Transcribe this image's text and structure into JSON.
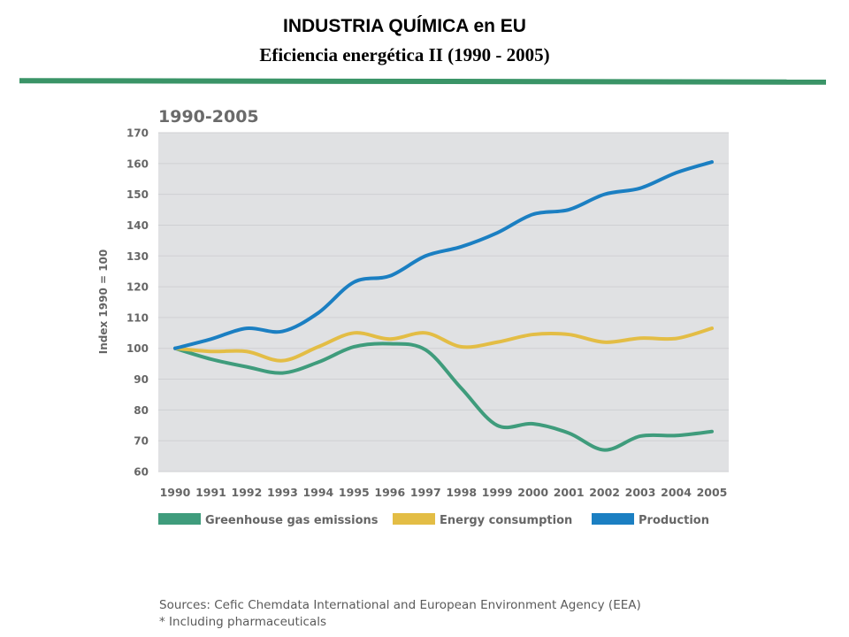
{
  "page": {
    "title": "INDUSTRIA QUÍMICA en EU",
    "subtitle": "Eficiencia energética  II (1990 - 2005)",
    "rule_color": "#3a9467"
  },
  "chart_data": {
    "type": "line",
    "title": "1990-2005",
    "xlabel": "",
    "ylabel": "Index 1990 = 100",
    "ylim": [
      60,
      170
    ],
    "yticks": [
      60,
      70,
      80,
      90,
      100,
      110,
      120,
      130,
      140,
      150,
      160,
      170
    ],
    "categories": [
      "1990",
      "1991",
      "1992",
      "1993",
      "1994",
      "1995",
      "1996",
      "1997",
      "1998",
      "1999",
      "2000",
      "2001",
      "2002",
      "2003",
      "2004",
      "2005"
    ],
    "grid": true,
    "legend_position": "bottom",
    "background": "#e0e1e3",
    "series": [
      {
        "name": "Greenhouse gas emissions",
        "color": "#3f9c7c",
        "values": [
          100,
          96.5,
          94,
          92,
          95.5,
          100.5,
          101.5,
          99.5,
          87,
          75,
          75.5,
          72.5,
          67,
          71.5,
          71.7,
          73
        ]
      },
      {
        "name": "Energy consumption",
        "color": "#e3bd45",
        "values": [
          100,
          99,
          99,
          96,
          100.5,
          105,
          103,
          105,
          100.5,
          102,
          104.5,
          104.5,
          102,
          103.3,
          103.2,
          106.5
        ]
      },
      {
        "name": "Production",
        "color": "#1b7fc2",
        "values": [
          100,
          103,
          106.5,
          105.5,
          111.5,
          121.5,
          123.5,
          130,
          133,
          137.5,
          143.5,
          145,
          150,
          152,
          157,
          160.5
        ]
      }
    ]
  },
  "sources": {
    "line1": "Sources: Cefic Chemdata International and  European Environment Agency (EEA)",
    "line2": "* Including pharmaceuticals"
  }
}
